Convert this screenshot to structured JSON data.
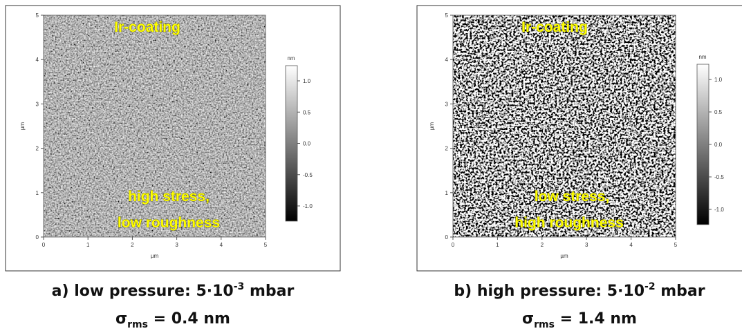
{
  "panels": [
    {
      "x_ticks": [
        "0",
        "1",
        "2",
        "3",
        "4",
        "5"
      ],
      "y_ticks": [
        "0",
        "1",
        "2",
        "3",
        "4",
        "5"
      ],
      "x_label": "µm",
      "y_label": "µm",
      "colorbar_unit": "nm",
      "colorbar_ticks": [
        "1.0",
        "0.5",
        "0.0",
        "-0.5",
        "-1.0"
      ],
      "annotations": [
        "Ir-coating",
        "high stress,",
        "low roughness"
      ],
      "caption": {
        "prefix": "a) low pressure:  5·10",
        "exponent": "-3",
        "suffix": " mbar",
        "sigma": "σ",
        "sigma_sub": "rms",
        "sigma_value": " = 0.4 nm"
      }
    },
    {
      "x_ticks": [
        "0",
        "1",
        "2",
        "3",
        "4",
        "5"
      ],
      "y_ticks": [
        "0",
        "1",
        "2",
        "3",
        "4",
        "5"
      ],
      "x_label": "µm",
      "y_label": "µm",
      "colorbar_unit": "nm",
      "colorbar_ticks": [
        "1.0",
        "0.5",
        "0.0",
        "-0.5",
        "-1.0"
      ],
      "annotations": [
        "Ir-coating",
        "low stress,",
        "high roughness"
      ],
      "caption": {
        "prefix": "b) high pressure:  5·10",
        "exponent": "-2",
        "suffix": " mbar",
        "sigma": "σ",
        "sigma_sub": "rms",
        "sigma_value": " = 1.4 nm"
      }
    }
  ]
}
